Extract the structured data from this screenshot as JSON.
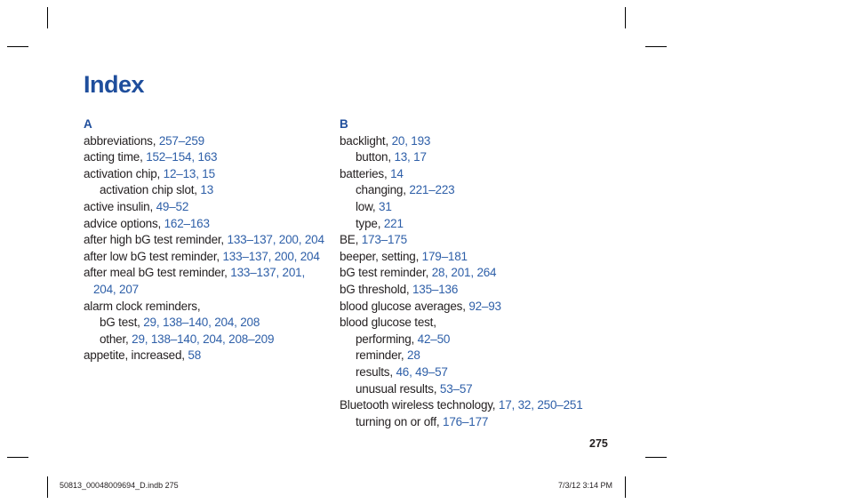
{
  "page_title": "Index",
  "page_number": "275",
  "slug_left": "50813_00048009694_D.indb   275",
  "slug_right": "7/3/12   3:14 PM",
  "column_a": {
    "letter": "A",
    "lines": [
      {
        "term": "abbreviations, ",
        "refs": "257–259",
        "style": ""
      },
      {
        "term": "acting time, ",
        "refs": "152–154, 163",
        "style": ""
      },
      {
        "term": "activation chip, ",
        "refs": "12–13, 15",
        "style": ""
      },
      {
        "term": "activation chip slot, ",
        "refs": "13",
        "style": "sub"
      },
      {
        "term": "active insulin, ",
        "refs": "49–52",
        "style": ""
      },
      {
        "term": "advice options, ",
        "refs": "162–163",
        "style": ""
      },
      {
        "term": "after high bG test reminder, ",
        "refs": "133–137, 200, 204",
        "style": ""
      },
      {
        "term": "after low bG test reminder, ",
        "refs": "133–137, 200, 204",
        "style": ""
      },
      {
        "term": "after meal bG test reminder, ",
        "refs": "133–137, 201,",
        "style": ""
      },
      {
        "term": "",
        "refs": "204, 207",
        "style": "cont"
      },
      {
        "term": "alarm clock reminders,",
        "refs": "",
        "style": ""
      },
      {
        "term": "bG test, ",
        "refs": "29, 138–140, 204, 208",
        "style": "sub"
      },
      {
        "term": "other, ",
        "refs": "29, 138–140, 204, 208–209",
        "style": "sub"
      },
      {
        "term": "appetite, increased, ",
        "refs": "58",
        "style": ""
      }
    ]
  },
  "column_b": {
    "letter": "B",
    "lines": [
      {
        "term": "backlight, ",
        "refs": "20, 193",
        "style": ""
      },
      {
        "term": "button, ",
        "refs": "13, 17",
        "style": "sub"
      },
      {
        "term": "batteries, ",
        "refs": "14",
        "style": ""
      },
      {
        "term": "changing, ",
        "refs": "221–223",
        "style": "sub"
      },
      {
        "term": "low, ",
        "refs": "31",
        "style": "sub"
      },
      {
        "term": "type, ",
        "refs": "221",
        "style": "sub"
      },
      {
        "term": "BE, ",
        "refs": "173–175",
        "style": ""
      },
      {
        "term": "beeper, setting, ",
        "refs": "179–181",
        "style": ""
      },
      {
        "term": "bG test reminder, ",
        "refs": "28, 201, 264",
        "style": ""
      },
      {
        "term": "bG threshold, ",
        "refs": "135–136",
        "style": ""
      },
      {
        "term": "blood glucose averages, ",
        "refs": "92–93",
        "style": ""
      },
      {
        "term": "blood glucose test,",
        "refs": "",
        "style": ""
      },
      {
        "term": "performing, ",
        "refs": "42–50",
        "style": "sub"
      },
      {
        "term": "reminder, ",
        "refs": "28",
        "style": "sub"
      },
      {
        "term": "results, ",
        "refs": "46, 49–57",
        "style": "sub"
      },
      {
        "term": "unusual results, ",
        "refs": "53–57",
        "style": "sub"
      },
      {
        "term": "Bluetooth wireless technology, ",
        "refs": "17, 32, 250–251",
        "style": ""
      },
      {
        "term": "turning on or off, ",
        "refs": "176–177",
        "style": "sub"
      }
    ]
  },
  "colors": {
    "heading": "#1f4e9c",
    "link": "#2e5fa8",
    "text": "#231f20"
  }
}
